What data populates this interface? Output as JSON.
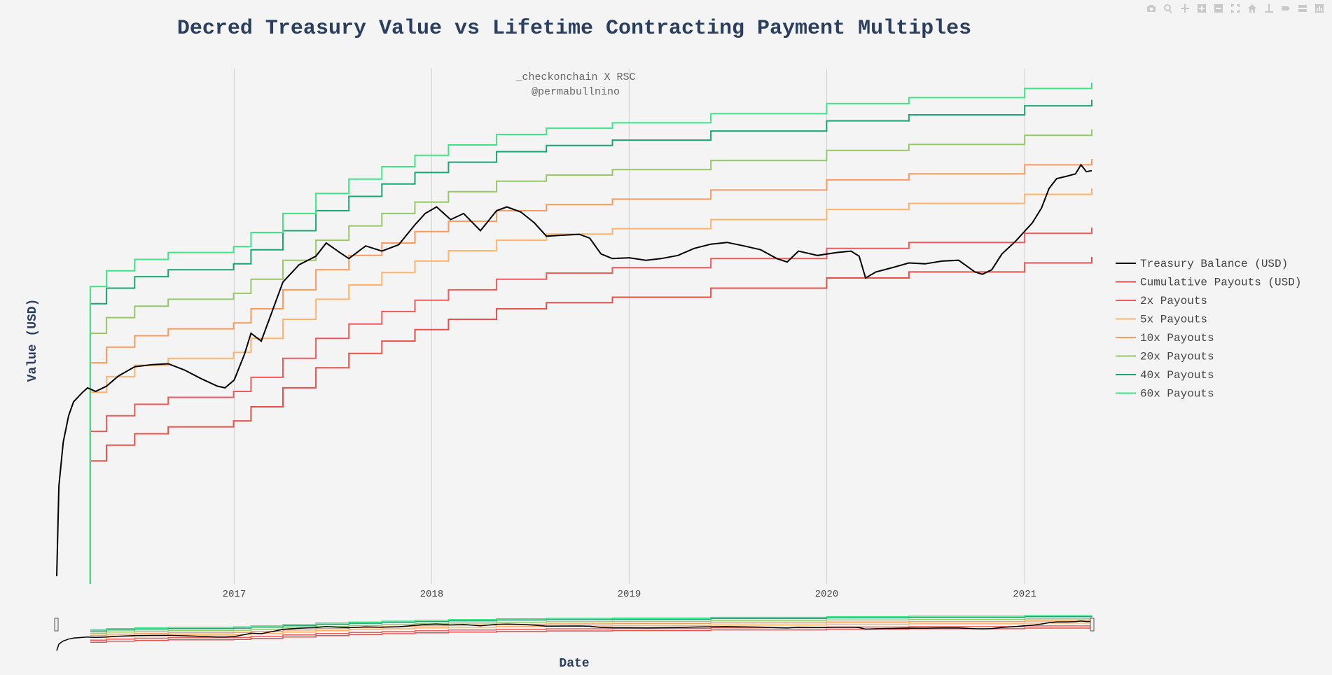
{
  "modebar": {
    "buttons": [
      "camera-icon",
      "zoom-icon",
      "pan-icon",
      "zoom-in-icon",
      "zoom-out-icon",
      "autoscale-icon",
      "home-icon",
      "spike-lines-icon",
      "hover-closest-icon",
      "hover-compare-icon",
      "plotly-logo-icon"
    ]
  },
  "colors": {
    "background": "#f4f4f4",
    "title": "#2a3f5f",
    "grid": "#d0d0d0",
    "treasury": "#000000",
    "cumulative": "#e8504a",
    "x2": "#ef5b5b",
    "x5": "#ffb36a",
    "x10": "#fb9a5c",
    "x20": "#95c867",
    "x40": "#1aa574",
    "x60": "#3fe585"
  },
  "chart_data": {
    "type": "line",
    "title": "Decred Treasury Value vs Lifetime Contracting Payment Multiples",
    "annotation_lines": [
      "_checkonchain X RSC",
      "@permabullnino"
    ],
    "xlabel": "Date",
    "ylabel": "Value (USD)",
    "y_axis_log_scale": true,
    "y_tick_labels_shown": false,
    "x_range": [
      "2016-02-08",
      "2021-05-05"
    ],
    "x_ticks": [
      "2017",
      "2018",
      "2019",
      "2020",
      "2021"
    ],
    "grid": {
      "vertical": true,
      "horizontal": false
    },
    "legend_position": "right",
    "range_slider": true,
    "series": [
      {
        "name": "Treasury Balance (USD)",
        "color_key": "treasury",
        "points": [
          [
            "2016-02-08",
            30000
          ],
          [
            "2016-02-12",
            250000
          ],
          [
            "2016-02-20",
            700000
          ],
          [
            "2016-03-01",
            1300000
          ],
          [
            "2016-03-10",
            1800000
          ],
          [
            "2016-03-25",
            2200000
          ],
          [
            "2016-04-05",
            2500000
          ],
          [
            "2016-04-20",
            2300000
          ],
          [
            "2016-05-10",
            2600000
          ],
          [
            "2016-06-01",
            3300000
          ],
          [
            "2016-07-01",
            4100000
          ],
          [
            "2016-08-01",
            4300000
          ],
          [
            "2016-09-01",
            4400000
          ],
          [
            "2016-10-01",
            3800000
          ],
          [
            "2016-11-01",
            3100000
          ],
          [
            "2016-12-01",
            2600000
          ],
          [
            "2016-12-15",
            2500000
          ],
          [
            "2017-01-01",
            3000000
          ],
          [
            "2017-01-20",
            5500000
          ],
          [
            "2017-02-01",
            9000000
          ],
          [
            "2017-02-20",
            7500000
          ],
          [
            "2017-03-10",
            14000000
          ],
          [
            "2017-04-01",
            30000000
          ],
          [
            "2017-05-01",
            45000000
          ],
          [
            "2017-06-01",
            55000000
          ],
          [
            "2017-06-20",
            75000000
          ],
          [
            "2017-07-15",
            60000000
          ],
          [
            "2017-08-01",
            52000000
          ],
          [
            "2017-09-01",
            70000000
          ],
          [
            "2017-10-01",
            62000000
          ],
          [
            "2017-11-01",
            72000000
          ],
          [
            "2017-12-01",
            115000000
          ],
          [
            "2017-12-20",
            150000000
          ],
          [
            "2018-01-10",
            175000000
          ],
          [
            "2018-02-05",
            130000000
          ],
          [
            "2018-03-01",
            150000000
          ],
          [
            "2018-04-01",
            100000000
          ],
          [
            "2018-05-01",
            160000000
          ],
          [
            "2018-05-20",
            175000000
          ],
          [
            "2018-06-15",
            155000000
          ],
          [
            "2018-07-10",
            120000000
          ],
          [
            "2018-08-01",
            88000000
          ],
          [
            "2018-09-01",
            90000000
          ],
          [
            "2018-10-01",
            92000000
          ],
          [
            "2018-10-20",
            84000000
          ],
          [
            "2018-11-10",
            58000000
          ],
          [
            "2018-12-01",
            52000000
          ],
          [
            "2019-01-01",
            53000000
          ],
          [
            "2019-02-01",
            50000000
          ],
          [
            "2019-03-01",
            52000000
          ],
          [
            "2019-04-01",
            56000000
          ],
          [
            "2019-05-01",
            66000000
          ],
          [
            "2019-06-01",
            73000000
          ],
          [
            "2019-07-01",
            76000000
          ],
          [
            "2019-08-01",
            70000000
          ],
          [
            "2019-09-01",
            64000000
          ],
          [
            "2019-10-01",
            52000000
          ],
          [
            "2019-10-20",
            48000000
          ],
          [
            "2019-11-10",
            62000000
          ],
          [
            "2019-12-15",
            56000000
          ],
          [
            "2020-01-20",
            60000000
          ],
          [
            "2020-02-15",
            62000000
          ],
          [
            "2020-03-01",
            55000000
          ],
          [
            "2020-03-13",
            33000000
          ],
          [
            "2020-04-01",
            38000000
          ],
          [
            "2020-05-01",
            42000000
          ],
          [
            "2020-06-01",
            47000000
          ],
          [
            "2020-07-01",
            46000000
          ],
          [
            "2020-08-01",
            49000000
          ],
          [
            "2020-09-01",
            50000000
          ],
          [
            "2020-10-01",
            38000000
          ],
          [
            "2020-10-15",
            36000000
          ],
          [
            "2020-11-01",
            40000000
          ],
          [
            "2020-11-20",
            58000000
          ],
          [
            "2020-12-15",
            78000000
          ],
          [
            "2021-01-15",
            120000000
          ],
          [
            "2021-02-01",
            170000000
          ],
          [
            "2021-02-15",
            270000000
          ],
          [
            "2021-03-01",
            340000000
          ],
          [
            "2021-03-20",
            360000000
          ],
          [
            "2021-04-05",
            380000000
          ],
          [
            "2021-04-15",
            470000000
          ],
          [
            "2021-04-25",
            400000000
          ],
          [
            "2021-05-05",
            410000000
          ]
        ]
      },
      {
        "name": "Cumulative Payouts (USD)",
        "color_key": "cumulative",
        "points": [
          [
            "2016-04-10",
            450000
          ],
          [
            "2016-05-10",
            650000
          ],
          [
            "2016-07-01",
            850000
          ],
          [
            "2016-09-01",
            1000000
          ],
          [
            "2016-12-31",
            1150000
          ],
          [
            "2017-02-01",
            1600000
          ],
          [
            "2017-04-01",
            2500000
          ],
          [
            "2017-06-01",
            4000000
          ],
          [
            "2017-08-01",
            5600000
          ],
          [
            "2017-10-01",
            7500000
          ],
          [
            "2017-12-01",
            9800000
          ],
          [
            "2018-02-01",
            12500000
          ],
          [
            "2018-05-01",
            16000000
          ],
          [
            "2018-08-01",
            18500000
          ],
          [
            "2018-12-01",
            21000000
          ],
          [
            "2019-06-01",
            26000000
          ],
          [
            "2020-01-01",
            33000000
          ],
          [
            "2020-06-01",
            38000000
          ],
          [
            "2021-01-01",
            47000000
          ],
          [
            "2021-05-05",
            54000000
          ]
        ]
      },
      {
        "name": "2x Payouts",
        "color_key": "x2",
        "points": [
          [
            "2016-04-10",
            900000
          ],
          [
            "2016-05-10",
            1300000
          ],
          [
            "2016-07-01",
            1700000
          ],
          [
            "2016-09-01",
            2000000
          ],
          [
            "2016-12-31",
            2300000
          ],
          [
            "2017-02-01",
            3200000
          ],
          [
            "2017-04-01",
            5000000
          ],
          [
            "2017-06-01",
            8000000
          ],
          [
            "2017-08-01",
            11200000
          ],
          [
            "2017-10-01",
            15000000
          ],
          [
            "2017-12-01",
            19600000
          ],
          [
            "2018-02-01",
            25000000
          ],
          [
            "2018-05-01",
            32000000
          ],
          [
            "2018-08-01",
            37000000
          ],
          [
            "2018-12-01",
            42000000
          ],
          [
            "2019-06-01",
            52000000
          ],
          [
            "2020-01-01",
            66000000
          ],
          [
            "2020-06-01",
            76000000
          ],
          [
            "2021-01-01",
            94000000
          ],
          [
            "2021-05-05",
            108000000
          ]
        ]
      },
      {
        "name": "5x Payouts",
        "color_key": "x5",
        "points": [
          [
            "2016-04-10",
            2250000
          ],
          [
            "2016-05-10",
            3250000
          ],
          [
            "2016-07-01",
            4250000
          ],
          [
            "2016-09-01",
            5000000
          ],
          [
            "2016-12-31",
            5750000
          ],
          [
            "2017-02-01",
            8000000
          ],
          [
            "2017-04-01",
            12500000
          ],
          [
            "2017-06-01",
            20000000
          ],
          [
            "2017-08-01",
            28000000
          ],
          [
            "2017-10-01",
            37500000
          ],
          [
            "2017-12-01",
            49000000
          ],
          [
            "2018-02-01",
            62500000
          ],
          [
            "2018-05-01",
            80000000
          ],
          [
            "2018-08-01",
            92500000
          ],
          [
            "2018-12-01",
            105000000
          ],
          [
            "2019-06-01",
            130000000
          ],
          [
            "2020-01-01",
            165000000
          ],
          [
            "2020-06-01",
            190000000
          ],
          [
            "2021-01-01",
            235000000
          ],
          [
            "2021-05-05",
            270000000
          ]
        ]
      },
      {
        "name": "10x Payouts",
        "color_key": "x10",
        "points": [
          [
            "2016-04-10",
            4500000
          ],
          [
            "2016-05-10",
            6500000
          ],
          [
            "2016-07-01",
            8500000
          ],
          [
            "2016-09-01",
            10000000
          ],
          [
            "2016-12-31",
            11500000
          ],
          [
            "2017-02-01",
            16000000
          ],
          [
            "2017-04-01",
            25000000
          ],
          [
            "2017-06-01",
            40000000
          ],
          [
            "2017-08-01",
            56000000
          ],
          [
            "2017-10-01",
            75000000
          ],
          [
            "2017-12-01",
            98000000
          ],
          [
            "2018-02-01",
            125000000
          ],
          [
            "2018-05-01",
            160000000
          ],
          [
            "2018-08-01",
            185000000
          ],
          [
            "2018-12-01",
            210000000
          ],
          [
            "2019-06-01",
            260000000
          ],
          [
            "2020-01-01",
            330000000
          ],
          [
            "2020-06-01",
            380000000
          ],
          [
            "2021-01-01",
            470000000
          ],
          [
            "2021-05-05",
            540000000
          ]
        ]
      },
      {
        "name": "20x Payouts",
        "color_key": "x20",
        "points": [
          [
            "2016-04-10",
            9000000
          ],
          [
            "2016-05-10",
            13000000
          ],
          [
            "2016-07-01",
            17000000
          ],
          [
            "2016-09-01",
            20000000
          ],
          [
            "2016-12-31",
            23000000
          ],
          [
            "2017-02-01",
            32000000
          ],
          [
            "2017-04-01",
            50000000
          ],
          [
            "2017-06-01",
            80000000
          ],
          [
            "2017-08-01",
            112000000
          ],
          [
            "2017-10-01",
            150000000
          ],
          [
            "2017-12-01",
            196000000
          ],
          [
            "2018-02-01",
            250000000
          ],
          [
            "2018-05-01",
            320000000
          ],
          [
            "2018-08-01",
            370000000
          ],
          [
            "2018-12-01",
            420000000
          ],
          [
            "2019-06-01",
            520000000
          ],
          [
            "2020-01-01",
            660000000
          ],
          [
            "2020-06-01",
            760000000
          ],
          [
            "2021-01-01",
            940000000
          ],
          [
            "2021-05-05",
            1080000000
          ]
        ]
      },
      {
        "name": "40x Payouts",
        "color_key": "x40",
        "points": [
          [
            "2016-04-10",
            18000000
          ],
          [
            "2016-05-10",
            26000000
          ],
          [
            "2016-07-01",
            34000000
          ],
          [
            "2016-09-01",
            40000000
          ],
          [
            "2016-12-31",
            46000000
          ],
          [
            "2017-02-01",
            64000000
          ],
          [
            "2017-04-01",
            100000000
          ],
          [
            "2017-06-01",
            160000000
          ],
          [
            "2017-08-01",
            224000000
          ],
          [
            "2017-10-01",
            300000000
          ],
          [
            "2017-12-01",
            392000000
          ],
          [
            "2018-02-01",
            500000000
          ],
          [
            "2018-05-01",
            640000000
          ],
          [
            "2018-08-01",
            740000000
          ],
          [
            "2018-12-01",
            840000000
          ],
          [
            "2019-06-01",
            1040000000
          ],
          [
            "2020-01-01",
            1320000000
          ],
          [
            "2020-06-01",
            1520000000
          ],
          [
            "2021-01-01",
            1880000000
          ],
          [
            "2021-05-05",
            2160000000
          ]
        ]
      },
      {
        "name": "60x Payouts",
        "color_key": "x60",
        "points": [
          [
            "2016-04-10",
            27000000
          ],
          [
            "2016-05-10",
            39000000
          ],
          [
            "2016-07-01",
            51000000
          ],
          [
            "2016-09-01",
            60000000
          ],
          [
            "2016-12-31",
            69000000
          ],
          [
            "2017-02-01",
            96000000
          ],
          [
            "2017-04-01",
            150000000
          ],
          [
            "2017-06-01",
            240000000
          ],
          [
            "2017-08-01",
            336000000
          ],
          [
            "2017-10-01",
            450000000
          ],
          [
            "2017-12-01",
            588000000
          ],
          [
            "2018-02-01",
            750000000
          ],
          [
            "2018-05-01",
            960000000
          ],
          [
            "2018-08-01",
            1110000000
          ],
          [
            "2018-12-01",
            1260000000
          ],
          [
            "2019-06-01",
            1560000000
          ],
          [
            "2020-01-01",
            1980000000
          ],
          [
            "2020-06-01",
            2280000000
          ],
          [
            "2021-01-01",
            2820000000
          ],
          [
            "2021-05-05",
            3240000000
          ]
        ]
      }
    ]
  }
}
